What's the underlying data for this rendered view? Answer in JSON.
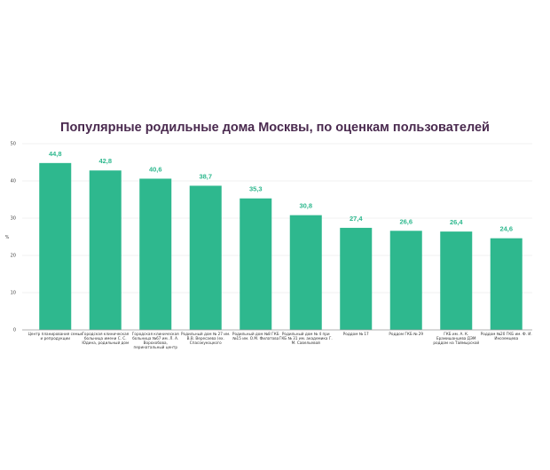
{
  "chart_data": {
    "type": "bar",
    "title": "Популярные родильные дома Москвы, по оценкам пользователей",
    "xlabel": "",
    "ylabel": "%",
    "ylim": [
      0,
      50
    ],
    "yticks": [
      0,
      10,
      20,
      30,
      40,
      50
    ],
    "grid": true,
    "bar_color": "#2eb88e",
    "value_label_color": "#2eb88e",
    "categories": [
      [
        "Центр планирования семьи",
        "и репродукции"
      ],
      [
        "Городская клиническая",
        "больница имени С. С.",
        "Юдина, родильный дом"
      ],
      [
        "Городская клиническая",
        "больница №67 им. Л. А.",
        "Ворохобова,",
        "перинатальный центр"
      ],
      [
        "Родильный дом № 27 им.",
        "В.В. Вересаева (ex.",
        "Спасокукоцкого"
      ],
      [
        "Родильный дом №8 ГКБ",
        "№15 им. О.М. Филатова"
      ],
      [
        "Родильный дом № 4 при",
        "ГКБ № 31 им. академика Г.",
        "М. Савельевой"
      ],
      [
        "Роддом № 17"
      ],
      [
        "Роддом ГКБ № 29"
      ],
      [
        "ГКБ им. А. К.",
        "Ерамишанцева ДЭМ",
        "роддом на Таймырской"
      ],
      [
        "Роддом №20 ГКБ им. Ф. И.",
        "Иноземцева"
      ]
    ],
    "values": [
      44.8,
      42.8,
      40.6,
      38.7,
      35.3,
      30.8,
      27.4,
      26.6,
      26.4,
      24.6
    ],
    "value_labels": [
      "44,8",
      "42,8",
      "40,6",
      "38,7",
      "35,3",
      "30,8",
      "27,4",
      "26,6",
      "26,4",
      "24,6"
    ]
  }
}
